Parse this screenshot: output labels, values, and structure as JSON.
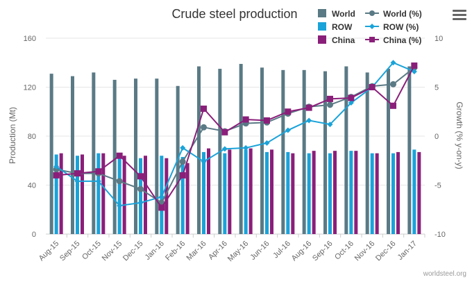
{
  "chart_data": {
    "type": "bar+line",
    "title": "Crude steel production",
    "categories": [
      "Aug-15",
      "Sep-15",
      "Oct-15",
      "Nov-15",
      "Dec-15",
      "Jan-16",
      "Feb-16",
      "Mar-16",
      "Apr-16",
      "May-16",
      "Jun-16",
      "Jul-16",
      "Aug-16",
      "Sep-16",
      "Oct-16",
      "Nov-16",
      "Dec-16",
      "Jan-17"
    ],
    "y_left": {
      "label": "Production (Mt)",
      "min": 0,
      "max": 160,
      "ticks": [
        0,
        40,
        80,
        120,
        160
      ]
    },
    "y_right": {
      "label": "Growth (% y-on-y)",
      "min": -10,
      "max": 10,
      "ticks": [
        -10,
        -5,
        0,
        5,
        10
      ]
    },
    "bar_series": [
      {
        "name": "World",
        "color": "#5a7a85",
        "values": [
          131,
          129,
          132,
          126,
          127,
          127,
          121,
          137,
          135,
          139,
          136,
          134,
          134,
          133,
          137,
          132,
          135,
          137
        ]
      },
      {
        "name": "ROW",
        "color": "#1aa3d9",
        "values": [
          65,
          64,
          66,
          62,
          62,
          64,
          63,
          67,
          66,
          69,
          67,
          67,
          66,
          66,
          68,
          66,
          66,
          69
        ]
      },
      {
        "name": "China",
        "color": "#8a1f7a",
        "values": [
          66,
          65,
          66,
          64,
          64,
          62,
          58,
          70,
          69,
          70,
          69,
          66,
          68,
          68,
          68,
          66,
          67,
          67
        ]
      }
    ],
    "line_series": [
      {
        "name": "World (%)",
        "color": "#5a7a85",
        "marker": "circle",
        "values": [
          -3.4,
          -3.8,
          -3.8,
          -4.6,
          -5.4,
          -6.8,
          -2.6,
          0.9,
          0.5,
          1.3,
          1.4,
          2.3,
          3.0,
          3.2,
          4.0,
          5.1,
          5.3,
          7.0
        ]
      },
      {
        "name": "ROW (%)",
        "color": "#1aa3d9",
        "marker": "diamond",
        "values": [
          -3.1,
          -4.6,
          -4.6,
          -7.1,
          -6.8,
          -6.2,
          -1.2,
          -2.6,
          -1.3,
          -1.2,
          -0.7,
          0.6,
          1.6,
          1.2,
          3.4,
          5.0,
          7.5,
          6.6
        ]
      },
      {
        "name": "China (%)",
        "color": "#8a1f7a",
        "marker": "square",
        "values": [
          -4.0,
          -3.8,
          -3.6,
          -2.0,
          -4.1,
          -7.3,
          -4.0,
          2.8,
          0.4,
          1.7,
          1.6,
          2.5,
          2.9,
          3.8,
          3.9,
          5.0,
          3.1,
          7.2
        ]
      }
    ],
    "legend_position": "top-right",
    "grid": true
  },
  "credit": "worldsteel.org",
  "menu_icon": "hamburger-menu-icon"
}
